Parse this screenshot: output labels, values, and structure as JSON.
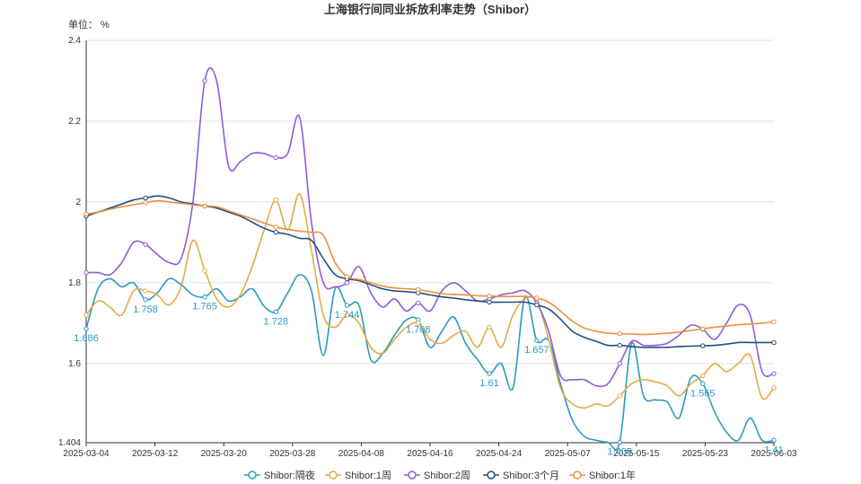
{
  "chart_data": {
    "type": "line",
    "title": "上海银行间同业拆放利率走势（Shibor）",
    "ylabel": "单位： %",
    "xlabel": "",
    "ylim": [
      1.404,
      2.4
    ],
    "y_ticks": [
      "1.404",
      "1.6",
      "1.8",
      "2",
      "2.2",
      "2.4"
    ],
    "x_ticks": [
      "2025-03-04",
      "2025-03-12",
      "2025-03-20",
      "2025-03-28",
      "2025-04-08",
      "2025-04-16",
      "2025-04-24",
      "2025-05-07",
      "2025-05-15",
      "2025-05-23",
      "2025-06-03"
    ],
    "grid": true,
    "legend_position": "bottom",
    "series": [
      {
        "name": "Shibor:隔夜",
        "color": "#2a9bc4",
        "values": [
          1.686,
          1.785,
          1.81,
          1.79,
          1.8,
          1.758,
          1.775,
          1.81,
          1.795,
          1.77,
          1.765,
          1.785,
          1.755,
          1.765,
          1.785,
          1.742,
          1.728,
          1.775,
          1.82,
          1.78,
          1.62,
          1.785,
          1.744,
          1.744,
          1.61,
          1.625,
          1.67,
          1.708,
          1.708,
          1.64,
          1.68,
          1.715,
          1.65,
          1.61,
          1.575,
          1.6,
          1.54,
          1.765,
          1.657,
          1.657,
          1.55,
          1.46,
          1.42,
          1.41,
          1.405,
          1.405,
          1.65,
          1.52,
          1.51,
          1.505,
          1.465,
          1.565,
          1.55,
          1.48,
          1.43,
          1.41,
          1.465,
          1.41,
          1.41
        ],
        "labels": [
          [
            0,
            "1.686"
          ],
          [
            5,
            "1.758"
          ],
          [
            10,
            "1.765"
          ],
          [
            16,
            "1.728"
          ],
          [
            22,
            "1.744"
          ],
          [
            28,
            "1.708"
          ],
          [
            34,
            "1.61"
          ],
          [
            38,
            "1.657"
          ],
          [
            45,
            "1.405"
          ],
          [
            52,
            "1.565"
          ],
          [
            58,
            "1.41"
          ]
        ]
      },
      {
        "name": "Shibor:1周",
        "color": "#e3ac45",
        "values": [
          1.72,
          1.755,
          1.74,
          1.72,
          1.78,
          1.78,
          1.77,
          1.745,
          1.79,
          1.905,
          1.83,
          1.76,
          1.74,
          1.77,
          1.84,
          1.93,
          2.005,
          1.93,
          2.02,
          1.88,
          1.72,
          1.69,
          1.72,
          1.7,
          1.64,
          1.625,
          1.66,
          1.69,
          1.7,
          1.66,
          1.65,
          1.67,
          1.68,
          1.64,
          1.69,
          1.64,
          1.72,
          1.76,
          1.755,
          1.66,
          1.54,
          1.5,
          1.49,
          1.5,
          1.495,
          1.52,
          1.55,
          1.56,
          1.555,
          1.545,
          1.52,
          1.55,
          1.57,
          1.6,
          1.58,
          1.6,
          1.62,
          1.515,
          1.54
        ]
      },
      {
        "name": "Shibor:2周",
        "color": "#8e5cd9",
        "values": [
          1.825,
          1.825,
          1.82,
          1.85,
          1.9,
          1.895,
          1.87,
          1.85,
          1.86,
          2.0,
          2.3,
          2.3,
          2.09,
          2.1,
          2.12,
          2.12,
          2.11,
          2.12,
          2.21,
          1.95,
          1.8,
          1.79,
          1.8,
          1.84,
          1.775,
          1.74,
          1.76,
          1.73,
          1.75,
          1.73,
          1.78,
          1.8,
          1.78,
          1.755,
          1.76,
          1.77,
          1.775,
          1.78,
          1.75,
          1.68,
          1.57,
          1.56,
          1.56,
          1.545,
          1.55,
          1.6,
          1.655,
          1.645,
          1.645,
          1.65,
          1.67,
          1.695,
          1.685,
          1.66,
          1.7,
          1.745,
          1.72,
          1.58,
          1.575
        ]
      },
      {
        "name": "Shibor:3个月",
        "color": "#1f5080",
        "values": [
          1.965,
          1.975,
          1.985,
          1.995,
          2.005,
          2.01,
          2.015,
          2.01,
          2.0,
          1.995,
          1.99,
          1.985,
          1.975,
          1.965,
          1.95,
          1.935,
          1.925,
          1.92,
          1.91,
          1.905,
          1.86,
          1.82,
          1.81,
          1.805,
          1.795,
          1.785,
          1.78,
          1.778,
          1.775,
          1.77,
          1.765,
          1.762,
          1.758,
          1.755,
          1.752,
          1.752,
          1.752,
          1.752,
          1.745,
          1.735,
          1.71,
          1.68,
          1.665,
          1.655,
          1.645,
          1.645,
          1.642,
          1.64,
          1.64,
          1.64,
          1.642,
          1.643,
          1.644,
          1.645,
          1.648,
          1.652,
          1.652,
          1.652,
          1.652
        ]
      },
      {
        "name": "Shibor:1年",
        "color": "#ef8e3c",
        "values": [
          1.97,
          1.975,
          1.982,
          1.988,
          1.993,
          1.998,
          2.003,
          2.0,
          1.997,
          1.993,
          1.99,
          1.988,
          1.978,
          1.968,
          1.958,
          1.948,
          1.938,
          1.932,
          1.928,
          1.925,
          1.918,
          1.85,
          1.815,
          1.808,
          1.8,
          1.792,
          1.787,
          1.785,
          1.783,
          1.778,
          1.773,
          1.771,
          1.77,
          1.768,
          1.767,
          1.766,
          1.766,
          1.766,
          1.762,
          1.752,
          1.73,
          1.705,
          1.688,
          1.68,
          1.675,
          1.674,
          1.673,
          1.672,
          1.673,
          1.675,
          1.678,
          1.682,
          1.686,
          1.69,
          1.693,
          1.696,
          1.698,
          1.7,
          1.703
        ]
      }
    ]
  }
}
